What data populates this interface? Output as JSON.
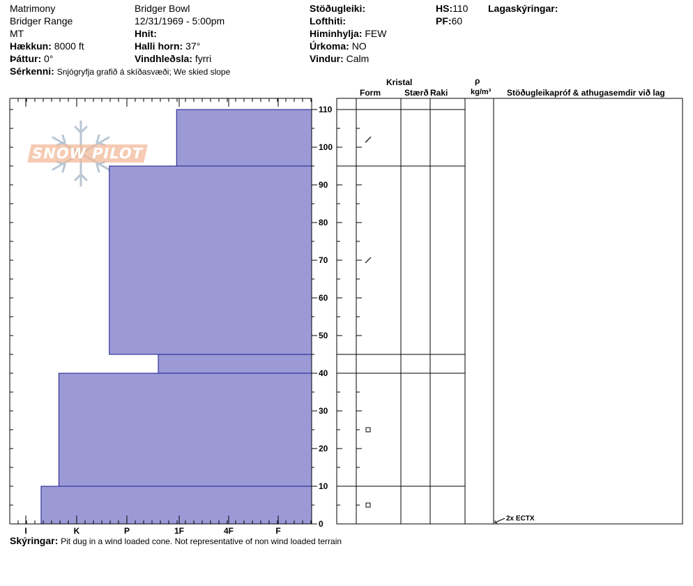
{
  "header": {
    "col1": [
      "Matrimony",
      "Bridger Range",
      "MT"
    ],
    "elevation_label": "Hækkun:",
    "elevation_value": "8000 ft",
    "aspect_label": "Þáttur:",
    "aspect_value": "0°",
    "col2": [
      "Bridger Bowl",
      "12/31/1969 - 5:00pm"
    ],
    "location_label": "Hnit:",
    "slope_label": "Halli horn:",
    "slope_value": "37°",
    "wind_loading_label": "Vindhleðsla:",
    "wind_loading_value": "fyrri",
    "stability_label": "Stöðugleiki:",
    "air_temp_label": "Lofthiti:",
    "sky_label": "Himinhylja:",
    "sky_value": "FEW",
    "precip_label": "Úrkoma:",
    "precip_value": "NO",
    "wind_label": "Vindur:",
    "wind_value": "Calm",
    "hs_label": "HS:",
    "hs_value": "110",
    "pf_label": "PF:",
    "pf_value": "60",
    "layer_notes_label": "Lagaskýringar:",
    "features_label": "Sérkenni:",
    "features_value": "Snjógryfja grafið á skíðasvæði;  We skied slope"
  },
  "columns": {
    "crystal": "Kristal",
    "form": "Form",
    "size": "Stærð",
    "moisture": "Raki",
    "rho": "ρ",
    "density_unit": "kg/m³",
    "tests": "Stöðugleikapróf & athugasemdir við lag"
  },
  "footer": {
    "comments_label": "Skýringar:",
    "comments_value": "Pit dug in a wind loaded cone. Not representative of non wind loaded terrain"
  },
  "watermark": {
    "text": "SNOW PILOT",
    "icon": "snowflake-icon",
    "color": "#f2b99a"
  },
  "chart_data": {
    "type": "bar",
    "orientation": "horizontal-profile",
    "hardness_ticks": [
      "I",
      "K",
      "P",
      "1F",
      "4F",
      "F"
    ],
    "y_ticks": [
      0,
      10,
      20,
      30,
      40,
      50,
      60,
      70,
      80,
      90,
      100,
      110
    ],
    "ylim": [
      0,
      110
    ],
    "bar_color": "#9b9ad6",
    "layers": [
      {
        "top": 110,
        "bottom": 95,
        "hardness": 2.95
      },
      {
        "top": 95,
        "bottom": 45,
        "hardness": 1.65
      },
      {
        "top": 45,
        "bottom": 40,
        "hardness": 2.6
      },
      {
        "top": 40,
        "bottom": 10,
        "hardness": 0.65
      },
      {
        "top": 10,
        "bottom": 0,
        "hardness": 0.3
      }
    ],
    "table_boundaries": [
      110,
      95,
      45,
      40,
      10
    ],
    "grain_symbols": [
      {
        "depth": 102,
        "shape": "slash"
      },
      {
        "depth": 70,
        "shape": "slash"
      },
      {
        "depth": 25,
        "shape": "square"
      },
      {
        "depth": 5,
        "shape": "square"
      }
    ],
    "tests": [
      {
        "depth": 0,
        "text": "2x ECTX"
      }
    ]
  }
}
